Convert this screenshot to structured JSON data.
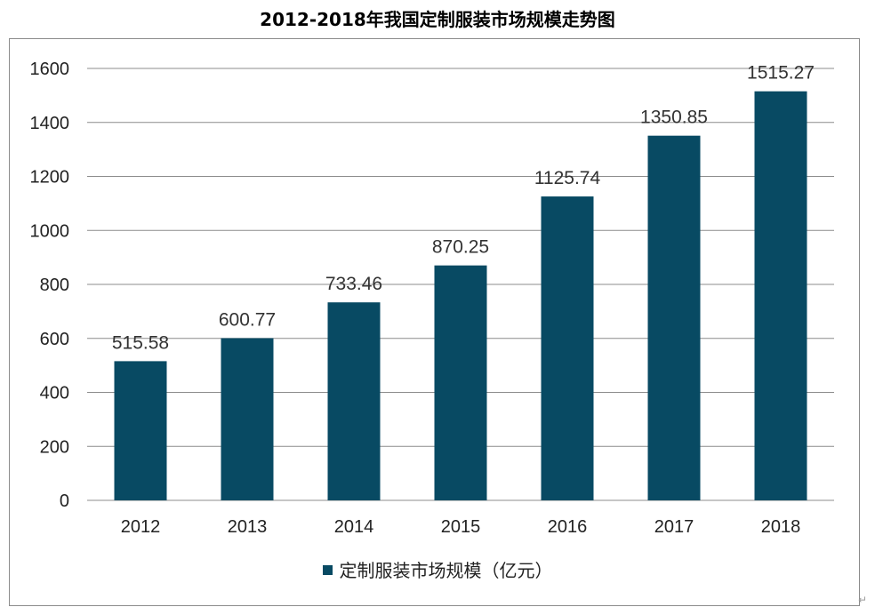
{
  "chart_data": {
    "type": "bar",
    "title": "2012-2018年我国定制服装市场规模走势图",
    "categories": [
      "2012",
      "2013",
      "2014",
      "2015",
      "2016",
      "2017",
      "2018"
    ],
    "series": [
      {
        "name": "定制服装市场规模（亿元）",
        "values": [
          515.58,
          600.77,
          733.46,
          870.25,
          1125.74,
          1350.85,
          1515.27
        ],
        "labels": [
          "515.58",
          "600.77",
          "733.46",
          "870.25",
          "1125.74",
          "1350.85",
          "1515.27"
        ]
      }
    ],
    "xlabel": "",
    "ylabel": "",
    "ylim": [
      0,
      1600
    ],
    "yticks": [
      0,
      200,
      400,
      600,
      800,
      1000,
      1200,
      1400,
      1600
    ],
    "grid": true,
    "legend_position": "bottom",
    "colors": {
      "bar": "#084a63"
    }
  }
}
